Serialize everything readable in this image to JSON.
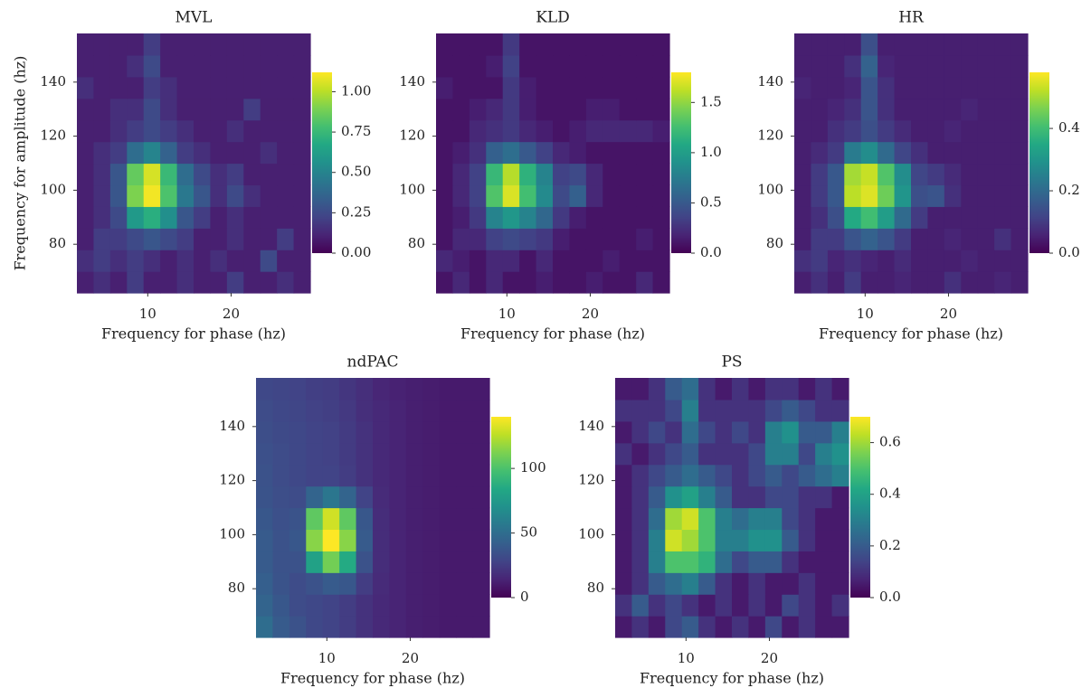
{
  "chart_data": [
    {
      "type": "heatmap",
      "title": "MVL",
      "xlabel": "Frequency for phase (hz)",
      "ylabel": "Frequency for amplitude (hz)",
      "colormap": "viridis",
      "x": [
        2.5,
        4.5,
        6.5,
        8.5,
        10.5,
        12.5,
        14.5,
        16.5,
        18.5,
        20.5,
        22.5,
        24.5,
        26.5,
        28.5
      ],
      "y": [
        66,
        74,
        82,
        90,
        98,
        106,
        114,
        122,
        130,
        138,
        146,
        154
      ],
      "xlim": [
        1.5,
        29.5
      ],
      "ylim": [
        62,
        158
      ],
      "xticks": [
        10,
        20
      ],
      "yticks": [
        80,
        100,
        120,
        140
      ],
      "clim": [
        0,
        1.12
      ],
      "cticks": [
        {
          "value": 0,
          "label": "0.00"
        },
        {
          "value": 0.25,
          "label": "0.25"
        },
        {
          "value": 0.5,
          "label": "0.50"
        },
        {
          "value": 0.75,
          "label": "0.75"
        },
        {
          "value": 1,
          "label": "1.00"
        }
      ],
      "values": [
        [
          0.1,
          0.15,
          0.1,
          0.2,
          0.1,
          0.1,
          0.15,
          0.1,
          0.1,
          0.2,
          0.1,
          0.1,
          0.15,
          0.1
        ],
        [
          0.15,
          0.2,
          0.15,
          0.2,
          0.15,
          0.1,
          0.15,
          0.1,
          0.15,
          0.1,
          0.1,
          0.25,
          0.1,
          0.1
        ],
        [
          0.1,
          0.2,
          0.2,
          0.25,
          0.3,
          0.25,
          0.2,
          0.1,
          0.1,
          0.15,
          0.1,
          0.1,
          0.2,
          0.1
        ],
        [
          0.1,
          0.15,
          0.25,
          0.6,
          0.7,
          0.55,
          0.3,
          0.2,
          0.1,
          0.15,
          0.1,
          0.1,
          0.1,
          0.1
        ],
        [
          0.1,
          0.15,
          0.3,
          0.9,
          1.1,
          0.8,
          0.45,
          0.3,
          0.15,
          0.25,
          0.15,
          0.1,
          0.1,
          0.1
        ],
        [
          0.1,
          0.15,
          0.3,
          0.85,
          1.05,
          0.75,
          0.4,
          0.25,
          0.15,
          0.2,
          0.1,
          0.1,
          0.1,
          0.1
        ],
        [
          0.1,
          0.15,
          0.2,
          0.4,
          0.5,
          0.35,
          0.2,
          0.15,
          0.1,
          0.1,
          0.1,
          0.15,
          0.1,
          0.1
        ],
        [
          0.1,
          0.1,
          0.15,
          0.2,
          0.25,
          0.2,
          0.15,
          0.1,
          0.1,
          0.15,
          0.1,
          0.1,
          0.1,
          0.1
        ],
        [
          0.1,
          0.1,
          0.15,
          0.15,
          0.25,
          0.15,
          0.1,
          0.1,
          0.1,
          0.1,
          0.2,
          0.1,
          0.1,
          0.1
        ],
        [
          0.15,
          0.1,
          0.1,
          0.1,
          0.2,
          0.15,
          0.1,
          0.1,
          0.1,
          0.1,
          0.1,
          0.1,
          0.1,
          0.1
        ],
        [
          0.1,
          0.1,
          0.1,
          0.15,
          0.25,
          0.1,
          0.1,
          0.1,
          0.1,
          0.1,
          0.1,
          0.1,
          0.1,
          0.1
        ],
        [
          0.1,
          0.1,
          0.1,
          0.1,
          0.2,
          0.1,
          0.1,
          0.1,
          0.1,
          0.1,
          0.1,
          0.1,
          0.1,
          0.1
        ]
      ]
    },
    {
      "type": "heatmap",
      "title": "KLD",
      "xlabel": "Frequency for phase (hz)",
      "colormap": "viridis",
      "x": [
        2.5,
        4.5,
        6.5,
        8.5,
        10.5,
        12.5,
        14.5,
        16.5,
        18.5,
        20.5,
        22.5,
        24.5,
        26.5,
        28.5
      ],
      "y": [
        66,
        74,
        82,
        90,
        98,
        106,
        114,
        122,
        130,
        138,
        146,
        154
      ],
      "xlim": [
        1.5,
        29.5
      ],
      "ylim": [
        62,
        158
      ],
      "xticks": [
        10,
        20
      ],
      "yticks": [
        80,
        100,
        120,
        140
      ],
      "clim": [
        0,
        1.8
      ],
      "cticks": [
        {
          "value": 0,
          "label": "0.0"
        },
        0.5,
        {
          "value": 1,
          "label": "1.0"
        },
        1.5
      ],
      "values": [
        [
          0.1,
          0.2,
          0.1,
          0.2,
          0.1,
          0.1,
          0.15,
          0.1,
          0.1,
          0.15,
          0.1,
          0.1,
          0.2,
          0.1
        ],
        [
          0.2,
          0.15,
          0.1,
          0.2,
          0.2,
          0.1,
          0.2,
          0.1,
          0.1,
          0.1,
          0.15,
          0.1,
          0.1,
          0.1
        ],
        [
          0.1,
          0.2,
          0.2,
          0.35,
          0.4,
          0.35,
          0.3,
          0.15,
          0.1,
          0.1,
          0.1,
          0.1,
          0.15,
          0.1
        ],
        [
          0.1,
          0.15,
          0.3,
          0.8,
          0.95,
          0.8,
          0.6,
          0.3,
          0.15,
          0.1,
          0.1,
          0.1,
          0.1,
          0.1
        ],
        [
          0.1,
          0.2,
          0.35,
          1.3,
          1.7,
          1.25,
          0.85,
          0.4,
          0.55,
          0.2,
          0.1,
          0.1,
          0.1,
          0.1
        ],
        [
          0.1,
          0.2,
          0.35,
          1.2,
          1.6,
          1.15,
          0.8,
          0.35,
          0.4,
          0.2,
          0.1,
          0.1,
          0.1,
          0.1
        ],
        [
          0.1,
          0.15,
          0.25,
          0.55,
          0.65,
          0.5,
          0.35,
          0.2,
          0.15,
          0.1,
          0.1,
          0.1,
          0.1,
          0.1
        ],
        [
          0.1,
          0.1,
          0.2,
          0.25,
          0.3,
          0.2,
          0.15,
          0.1,
          0.15,
          0.2,
          0.2,
          0.2,
          0.2,
          0.15
        ],
        [
          0.1,
          0.1,
          0.15,
          0.2,
          0.3,
          0.15,
          0.1,
          0.1,
          0.1,
          0.15,
          0.15,
          0.1,
          0.1,
          0.1
        ],
        [
          0.15,
          0.1,
          0.1,
          0.1,
          0.3,
          0.15,
          0.1,
          0.1,
          0.1,
          0.1,
          0.1,
          0.1,
          0.1,
          0.1
        ],
        [
          0.1,
          0.1,
          0.1,
          0.15,
          0.35,
          0.1,
          0.1,
          0.1,
          0.1,
          0.1,
          0.1,
          0.1,
          0.1,
          0.1
        ],
        [
          0.1,
          0.1,
          0.1,
          0.1,
          0.3,
          0.1,
          0.1,
          0.1,
          0.1,
          0.1,
          0.1,
          0.1,
          0.1,
          0.1
        ]
      ]
    },
    {
      "type": "heatmap",
      "title": "HR",
      "xlabel": "Frequency for phase (hz)",
      "colormap": "viridis",
      "x": [
        2.5,
        4.5,
        6.5,
        8.5,
        10.5,
        12.5,
        14.5,
        16.5,
        18.5,
        20.5,
        22.5,
        24.5,
        26.5,
        28.5
      ],
      "y": [
        66,
        74,
        82,
        90,
        98,
        106,
        114,
        122,
        130,
        138,
        146,
        154
      ],
      "xlim": [
        1.5,
        29.5
      ],
      "ylim": [
        62,
        158
      ],
      "xticks": [
        10,
        20
      ],
      "yticks": [
        80,
        100,
        120,
        140
      ],
      "clim": [
        0,
        0.58
      ],
      "cticks": [
        {
          "value": 0,
          "label": "0.0"
        },
        0.2,
        0.4
      ],
      "values": [
        [
          0.05,
          0.08,
          0.05,
          0.1,
          0.05,
          0.05,
          0.06,
          0.05,
          0.05,
          0.08,
          0.05,
          0.05,
          0.06,
          0.05
        ],
        [
          0.08,
          0.1,
          0.06,
          0.08,
          0.06,
          0.05,
          0.07,
          0.05,
          0.05,
          0.05,
          0.06,
          0.05,
          0.05,
          0.05
        ],
        [
          0.05,
          0.1,
          0.1,
          0.15,
          0.18,
          0.15,
          0.1,
          0.05,
          0.05,
          0.06,
          0.05,
          0.05,
          0.08,
          0.05
        ],
        [
          0.05,
          0.08,
          0.14,
          0.35,
          0.4,
          0.32,
          0.2,
          0.1,
          0.05,
          0.05,
          0.05,
          0.05,
          0.05,
          0.05
        ],
        [
          0.05,
          0.1,
          0.16,
          0.52,
          0.55,
          0.45,
          0.3,
          0.14,
          0.15,
          0.08,
          0.05,
          0.05,
          0.05,
          0.05
        ],
        [
          0.05,
          0.1,
          0.16,
          0.5,
          0.53,
          0.42,
          0.28,
          0.12,
          0.1,
          0.07,
          0.05,
          0.05,
          0.05,
          0.05
        ],
        [
          0.05,
          0.07,
          0.1,
          0.24,
          0.28,
          0.2,
          0.12,
          0.08,
          0.05,
          0.05,
          0.05,
          0.05,
          0.05,
          0.05
        ],
        [
          0.05,
          0.05,
          0.08,
          0.1,
          0.14,
          0.1,
          0.07,
          0.05,
          0.05,
          0.06,
          0.05,
          0.05,
          0.05,
          0.05
        ],
        [
          0.05,
          0.05,
          0.06,
          0.08,
          0.15,
          0.08,
          0.05,
          0.05,
          0.05,
          0.05,
          0.06,
          0.05,
          0.05,
          0.05
        ],
        [
          0.06,
          0.05,
          0.05,
          0.06,
          0.15,
          0.08,
          0.05,
          0.05,
          0.05,
          0.05,
          0.05,
          0.05,
          0.05,
          0.05
        ],
        [
          0.05,
          0.05,
          0.05,
          0.08,
          0.18,
          0.06,
          0.05,
          0.05,
          0.05,
          0.05,
          0.05,
          0.05,
          0.05,
          0.05
        ],
        [
          0.05,
          0.05,
          0.05,
          0.05,
          0.14,
          0.05,
          0.05,
          0.05,
          0.05,
          0.05,
          0.05,
          0.05,
          0.05,
          0.05
        ]
      ]
    },
    {
      "type": "heatmap",
      "title": "ndPAC",
      "xlabel": "Frequency for phase (hz)",
      "colormap": "viridis",
      "x": [
        2.5,
        4.5,
        6.5,
        8.5,
        10.5,
        12.5,
        14.5,
        16.5,
        18.5,
        20.5,
        22.5,
        24.5,
        26.5,
        28.5
      ],
      "y": [
        66,
        74,
        82,
        90,
        98,
        106,
        114,
        122,
        130,
        138,
        146,
        154
      ],
      "xlim": [
        1.5,
        29.5
      ],
      "ylim": [
        62,
        158
      ],
      "xticks": [
        10,
        20
      ],
      "yticks": [
        80,
        100,
        120,
        140
      ],
      "clim": [
        0,
        140
      ],
      "cticks": [
        0,
        50,
        100
      ],
      "values": [
        [
          50,
          40,
          35,
          30,
          28,
          25,
          20,
          16,
          14,
          12,
          11,
          10,
          10,
          10
        ],
        [
          45,
          38,
          32,
          30,
          28,
          25,
          20,
          16,
          14,
          12,
          11,
          10,
          10,
          10
        ],
        [
          42,
          36,
          32,
          35,
          40,
          38,
          25,
          17,
          14,
          12,
          11,
          10,
          10,
          10
        ],
        [
          40,
          35,
          35,
          80,
          110,
          85,
          35,
          18,
          14,
          12,
          11,
          10,
          10,
          10
        ],
        [
          40,
          35,
          38,
          115,
          140,
          115,
          40,
          18,
          14,
          12,
          11,
          10,
          10,
          10
        ],
        [
          38,
          34,
          36,
          105,
          130,
          105,
          38,
          18,
          14,
          12,
          11,
          10,
          10,
          10
        ],
        [
          36,
          33,
          32,
          45,
          55,
          45,
          28,
          17,
          14,
          12,
          11,
          10,
          10,
          10
        ],
        [
          35,
          32,
          30,
          28,
          28,
          25,
          20,
          16,
          14,
          12,
          11,
          10,
          10,
          10
        ],
        [
          34,
          32,
          30,
          28,
          27,
          24,
          20,
          16,
          14,
          12,
          11,
          10,
          10,
          10
        ],
        [
          33,
          31,
          30,
          28,
          27,
          24,
          20,
          16,
          14,
          12,
          11,
          10,
          10,
          10
        ],
        [
          32,
          30,
          29,
          27,
          26,
          23,
          19,
          16,
          14,
          12,
          11,
          10,
          10,
          10
        ],
        [
          30,
          29,
          28,
          26,
          25,
          22,
          19,
          15,
          13,
          12,
          11,
          10,
          10,
          10
        ]
      ]
    },
    {
      "type": "heatmap",
      "title": "PS",
      "xlabel": "Frequency for phase (hz)",
      "colormap": "viridis",
      "x": [
        2.5,
        4.5,
        6.5,
        8.5,
        10.5,
        12.5,
        14.5,
        16.5,
        18.5,
        20.5,
        22.5,
        24.5,
        26.5,
        28.5
      ],
      "y": [
        66,
        74,
        82,
        90,
        98,
        106,
        114,
        122,
        130,
        138,
        146,
        154
      ],
      "xlim": [
        1.5,
        29.5
      ],
      "ylim": [
        62,
        158
      ],
      "xticks": [
        10,
        20
      ],
      "yticks": [
        80,
        100,
        120,
        140
      ],
      "clim": [
        0,
        0.7
      ],
      "cticks": [
        {
          "value": 0,
          "label": "0.0"
        },
        0.2,
        0.4,
        0.6
      ],
      "values": [
        [
          0.05,
          0.1,
          0.05,
          0.15,
          0.2,
          0.1,
          0.05,
          0.1,
          0.05,
          0.15,
          0.05,
          0.1,
          0.05,
          0.05
        ],
        [
          0.1,
          0.2,
          0.1,
          0.15,
          0.1,
          0.05,
          0.1,
          0.05,
          0.1,
          0.05,
          0.15,
          0.1,
          0.05,
          0.1
        ],
        [
          0.05,
          0.1,
          0.2,
          0.25,
          0.3,
          0.2,
          0.1,
          0.05,
          0.1,
          0.05,
          0.05,
          0.1,
          0.05,
          0.05
        ],
        [
          0.05,
          0.1,
          0.3,
          0.5,
          0.5,
          0.45,
          0.25,
          0.15,
          0.2,
          0.2,
          0.1,
          0.05,
          0.05,
          0.05
        ],
        [
          0.05,
          0.1,
          0.3,
          0.65,
          0.6,
          0.5,
          0.3,
          0.3,
          0.35,
          0.35,
          0.2,
          0.1,
          0.05,
          0.05
        ],
        [
          0.05,
          0.1,
          0.25,
          0.6,
          0.65,
          0.5,
          0.3,
          0.25,
          0.3,
          0.3,
          0.15,
          0.1,
          0.05,
          0.05
        ],
        [
          0.05,
          0.1,
          0.2,
          0.35,
          0.4,
          0.3,
          0.2,
          0.1,
          0.1,
          0.15,
          0.15,
          0.1,
          0.1,
          0.05
        ],
        [
          0.05,
          0.1,
          0.15,
          0.2,
          0.25,
          0.2,
          0.15,
          0.1,
          0.15,
          0.2,
          0.15,
          0.2,
          0.25,
          0.3
        ],
        [
          0.1,
          0.05,
          0.1,
          0.15,
          0.2,
          0.1,
          0.1,
          0.1,
          0.15,
          0.3,
          0.3,
          0.15,
          0.3,
          0.35
        ],
        [
          0.05,
          0.1,
          0.15,
          0.1,
          0.25,
          0.15,
          0.1,
          0.15,
          0.1,
          0.3,
          0.35,
          0.2,
          0.2,
          0.3
        ],
        [
          0.1,
          0.1,
          0.1,
          0.15,
          0.3,
          0.1,
          0.1,
          0.1,
          0.1,
          0.15,
          0.2,
          0.15,
          0.1,
          0.1
        ],
        [
          0.05,
          0.05,
          0.1,
          0.2,
          0.25,
          0.1,
          0.05,
          0.1,
          0.05,
          0.1,
          0.1,
          0.05,
          0.1,
          0.05
        ]
      ]
    }
  ]
}
